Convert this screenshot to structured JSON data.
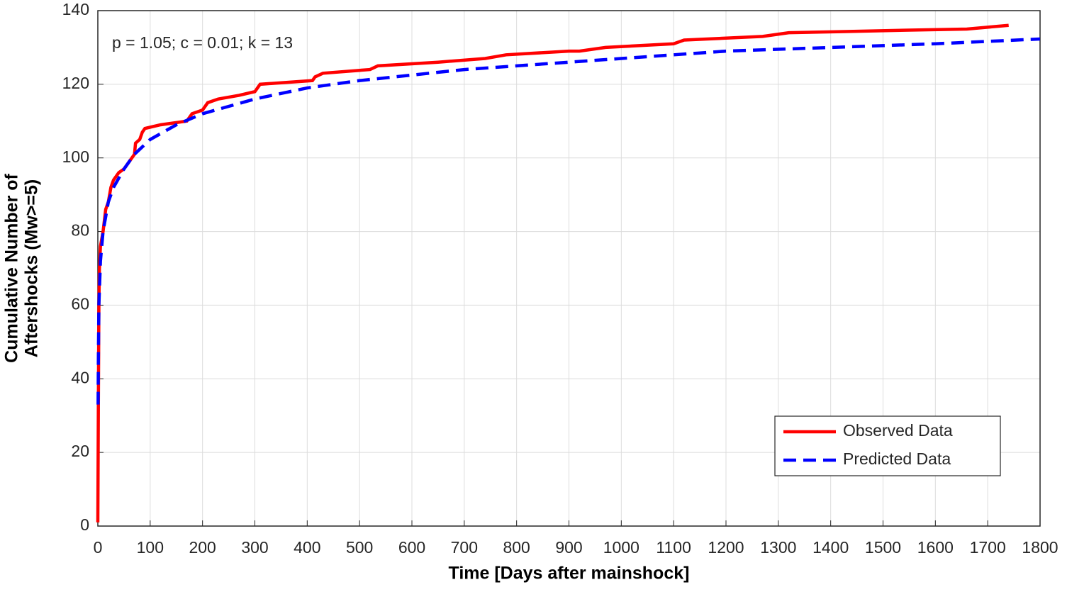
{
  "chart_data": {
    "type": "line",
    "xlabel": "Time [Days after mainshock]",
    "ylabel": [
      "Cumulative Number of",
      "Aftershocks (Mw>=5)"
    ],
    "annotation": "p = 1.05; c = 0.01; k = 13",
    "xlim": [
      0,
      1800
    ],
    "xticks": [
      0,
      100,
      200,
      300,
      400,
      500,
      600,
      700,
      800,
      900,
      1000,
      1100,
      1200,
      1300,
      1400,
      1500,
      1600,
      1700,
      1800
    ],
    "ylim": [
      0,
      140
    ],
    "yticks": [
      0,
      20,
      40,
      60,
      80,
      100,
      120,
      140
    ],
    "grid": true,
    "legend": "lower right",
    "series": [
      {
        "name": "Observed Data",
        "color": "#ff0000",
        "dash": "solid",
        "x": [
          0,
          1,
          2,
          3,
          5,
          10,
          15,
          20,
          25,
          30,
          40,
          50,
          60,
          70,
          72,
          80,
          85,
          90,
          120,
          170,
          180,
          200,
          210,
          230,
          270,
          300,
          310,
          410,
          415,
          430,
          520,
          535,
          650,
          740,
          780,
          900,
          920,
          970,
          1100,
          1120,
          1270,
          1320,
          1420,
          1550,
          1660,
          1700,
          1740
        ],
        "values": [
          1,
          33,
          60,
          70,
          76,
          80,
          86,
          88,
          92,
          94,
          96,
          97,
          99,
          101,
          104,
          105,
          107,
          108,
          109,
          110,
          112,
          113,
          115,
          116,
          117,
          118,
          120,
          121,
          122,
          123,
          124,
          125,
          126,
          127,
          128,
          129,
          129,
          130,
          131,
          132,
          133,
          134,
          134.3,
          134.7,
          135,
          135.5,
          136
        ]
      },
      {
        "name": "Predicted Data",
        "color": "#0000ff",
        "dash": "dashed",
        "x": [
          0.5,
          1,
          2,
          5,
          10,
          20,
          30,
          50,
          70,
          100,
          150,
          200,
          300,
          400,
          500,
          600,
          700,
          800,
          900,
          1000,
          1200,
          1400,
          1600,
          1800
        ],
        "values": [
          33,
          45,
          60,
          72,
          80,
          88,
          92,
          97,
          101,
          105,
          109,
          112,
          116,
          119,
          121,
          122.5,
          124,
          125,
          126,
          127,
          129,
          130,
          131,
          132.3
        ]
      }
    ]
  }
}
